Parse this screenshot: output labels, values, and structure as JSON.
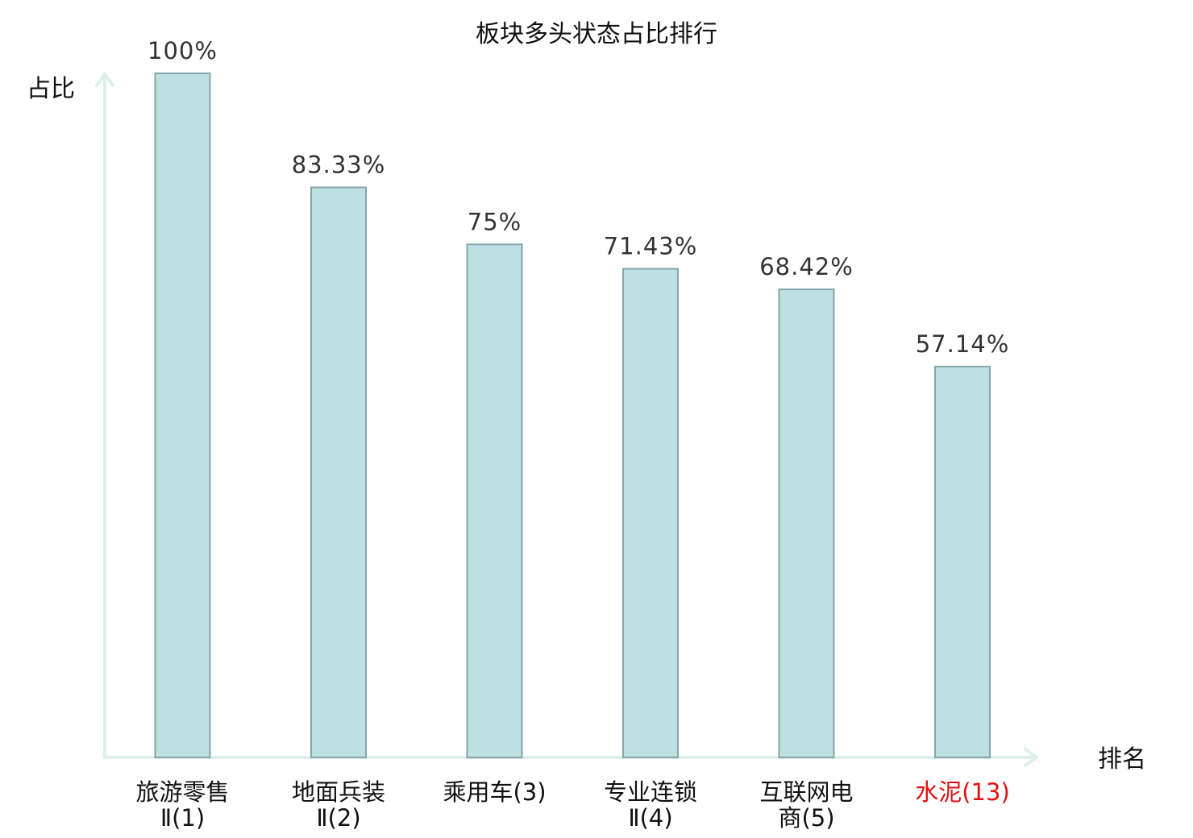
{
  "chart_data": {
    "type": "bar",
    "title": "板块多头状态占比排行",
    "ylabel": "占比",
    "xlabel": "排名",
    "ylim": [
      0,
      100
    ],
    "grid": false,
    "categories": [
      [
        "旅游零售",
        "Ⅱ(1)"
      ],
      [
        "地面兵装",
        "Ⅱ(2)"
      ],
      [
        "乘用车(3)"
      ],
      [
        "专业连锁",
        "Ⅱ(4)"
      ],
      [
        "互联网电",
        "商(5)"
      ],
      [
        "水泥(13)"
      ]
    ],
    "values": [
      100,
      83.33,
      75,
      71.43,
      68.42,
      57.14
    ],
    "value_labels": [
      "100%",
      "83.33%",
      "75%",
      "71.43%",
      "68.42%",
      "57.14%"
    ],
    "highlight_index": 5,
    "colors": {
      "bar_fill": "#bde0e3",
      "bar_stroke": "#86a6aa",
      "axis": "#dcefeb",
      "highlight_label": "#e01010"
    }
  }
}
